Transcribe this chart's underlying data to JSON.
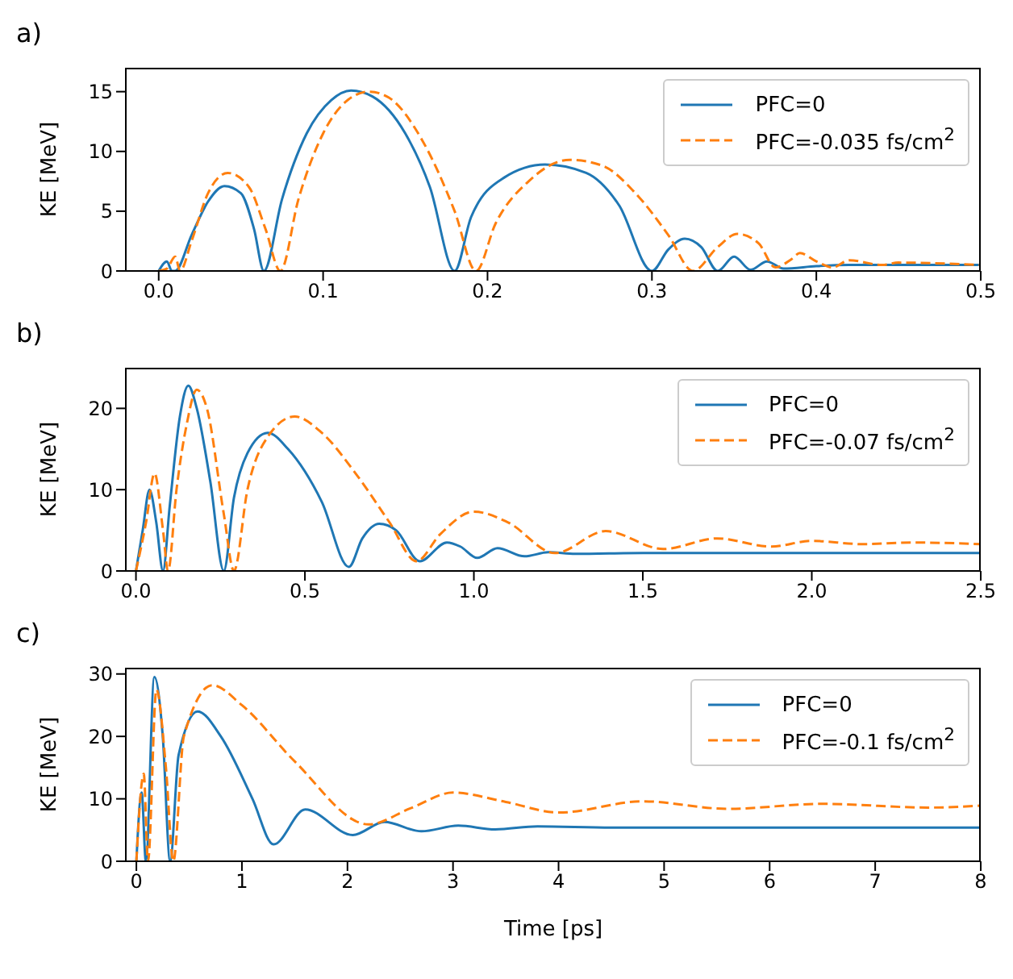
{
  "chart_data": [
    {
      "type": "line",
      "title": "a)",
      "ylabel": "KE [MeV]",
      "xlim": [
        -0.02,
        0.5
      ],
      "xticks": [
        {
          "value": 0,
          "label": "0.0"
        },
        0.1,
        0.2,
        0.3,
        0.4,
        0.5
      ],
      "ylim": [
        0,
        17
      ],
      "yticks": [
        0,
        5,
        10,
        15
      ],
      "legend": "top right",
      "marker": "none",
      "series": [
        {
          "name": "PFC=0",
          "color": "#1f77b4",
          "line_style": "solid",
          "x": [
            0,
            0.005,
            0.008,
            0.01,
            0.02,
            0.03,
            0.04,
            0.05,
            0.058,
            0.064,
            0.075,
            0.09,
            0.105,
            0.117,
            0.13,
            0.15,
            0.165,
            0.18,
            0.19,
            0.21,
            0.235,
            0.26,
            0.28,
            0.3,
            0.31,
            0.32,
            0.33,
            0.34,
            0.35,
            0.36,
            0.37,
            0.38,
            0.4,
            0.42,
            0.5
          ],
          "values": [
            0,
            0.8,
            0,
            0,
            3,
            5.8,
            7.1,
            6.5,
            3.5,
            0,
            6,
            11.5,
            14.3,
            15.1,
            14.6,
            11.5,
            7,
            0,
            4.5,
            7.8,
            8.9,
            8.2,
            5.5,
            0,
            1.8,
            2.7,
            2,
            0,
            1.2,
            0.1,
            0.8,
            0.2,
            0.4,
            0.5,
            0.5
          ]
        },
        {
          "name": "PFC=-0.035 fs/cm$^{2}$",
          "color": "#ff7f0e",
          "line_style": "dashed",
          "x": [
            0,
            0.005,
            0.01,
            0.013,
            0.02,
            0.03,
            0.042,
            0.055,
            0.065,
            0.074,
            0.085,
            0.1,
            0.115,
            0.128,
            0.14,
            0.16,
            0.18,
            0.193,
            0.205,
            0.225,
            0.25,
            0.27,
            0.29,
            0.31,
            0.325,
            0.34,
            0.352,
            0.365,
            0.375,
            0.385,
            0.39,
            0.4,
            0.41,
            0.42,
            0.44,
            0.45,
            0.5
          ],
          "values": [
            0,
            0.2,
            1.2,
            0,
            2.5,
            6.5,
            8.2,
            7,
            3.5,
            0,
            6,
            11.5,
            14.3,
            15,
            14.5,
            11,
            5,
            0,
            4,
            7.5,
            9.3,
            8.8,
            6.5,
            3,
            0,
            2,
            3.1,
            2.3,
            0.3,
            1,
            1.5,
            0.8,
            0.3,
            0.9,
            0.5,
            0.7,
            0.5
          ]
        }
      ]
    },
    {
      "type": "line",
      "title": "b)",
      "ylabel": "KE [MeV]",
      "xlim": [
        -0.03,
        2.5
      ],
      "xticks": [
        {
          "value": 0,
          "label": "0.0"
        },
        0.5,
        {
          "value": 1,
          "label": "1.0"
        },
        1.5,
        {
          "value": 2,
          "label": "2.0"
        },
        2.5
      ],
      "ylim": [
        0,
        25
      ],
      "yticks": [
        0,
        10,
        20
      ],
      "legend": "top right",
      "marker": "none",
      "series": [
        {
          "name": "PFC=0",
          "color": "#1f77b4",
          "line_style": "solid",
          "x": [
            0,
            0.02,
            0.04,
            0.06,
            0.08,
            0.1,
            0.13,
            0.155,
            0.18,
            0.22,
            0.26,
            0.29,
            0.33,
            0.39,
            0.45,
            0.55,
            0.63,
            0.67,
            0.72,
            0.77,
            0.84,
            0.92,
            0.96,
            1.01,
            1.07,
            1.15,
            1.22,
            1.3,
            1.5,
            2.5
          ],
          "values": [
            0,
            5,
            10,
            6,
            0,
            8,
            19,
            22.8,
            20,
            11,
            0,
            9,
            14.5,
            17,
            15,
            8.5,
            0.5,
            4,
            5.8,
            5,
            1.2,
            3.5,
            3,
            1.6,
            2.8,
            1.8,
            2.3,
            2.1,
            2.2,
            2.2
          ]
        },
        {
          "name": "PFC=-0.07 fs/cm$^{2}$",
          "color": "#ff7f0e",
          "line_style": "dashed",
          "x": [
            0,
            0.03,
            0.055,
            0.08,
            0.095,
            0.12,
            0.15,
            0.18,
            0.21,
            0.26,
            0.29,
            0.33,
            0.39,
            0.47,
            0.55,
            0.65,
            0.75,
            0.83,
            0.9,
            1.0,
            1.1,
            1.24,
            1.39,
            1.56,
            1.72,
            1.88,
            2.0,
            2.15,
            2.3,
            2.5
          ],
          "values": [
            0,
            6,
            12,
            5,
            0,
            10,
            18,
            22.3,
            20,
            7,
            0,
            10,
            16.5,
            19,
            17,
            12,
            6,
            1.2,
            4.5,
            7.3,
            6,
            2.2,
            4.9,
            2.7,
            4,
            3,
            3.7,
            3.3,
            3.5,
            3.3
          ]
        }
      ]
    },
    {
      "type": "line",
      "title": "c)",
      "xlabel": "Time [ps]",
      "ylabel": "KE [MeV]",
      "xlim": [
        -0.1,
        8
      ],
      "xticks": [
        0,
        1,
        2,
        3,
        4,
        5,
        6,
        7,
        8
      ],
      "ylim": [
        0,
        31
      ],
      "yticks": [
        0,
        10,
        20,
        30
      ],
      "legend": "top right",
      "marker": "none",
      "series": [
        {
          "name": "PFC=0",
          "color": "#1f77b4",
          "line_style": "solid",
          "x": [
            0,
            0.05,
            0.09,
            0.17,
            0.25,
            0.32,
            0.4,
            0.58,
            0.8,
            1.1,
            1.3,
            1.6,
            2.05,
            2.35,
            2.7,
            3.05,
            3.4,
            3.8,
            4.5,
            8
          ],
          "values": [
            0,
            11,
            0,
            29.5,
            20,
            0,
            17,
            24,
            20,
            10,
            2.7,
            8.3,
            4.2,
            6.3,
            4.8,
            5.7,
            5.1,
            5.6,
            5.4,
            5.4
          ]
        },
        {
          "name": "PFC=-0.1 fs/cm$^{2}$",
          "color": "#ff7f0e",
          "line_style": "dashed",
          "x": [
            0,
            0.07,
            0.11,
            0.19,
            0.28,
            0.35,
            0.45,
            0.72,
            1,
            1.5,
            2.2,
            2.6,
            3,
            3.5,
            4,
            4.8,
            5.6,
            6.5,
            7.5,
            8
          ],
          "values": [
            0,
            14,
            0,
            27.5,
            15,
            0,
            20,
            28.2,
            25,
            16,
            5.9,
            8.5,
            11,
            9.5,
            7.8,
            9.6,
            8.4,
            9.2,
            8.6,
            8.9
          ]
        }
      ]
    }
  ]
}
